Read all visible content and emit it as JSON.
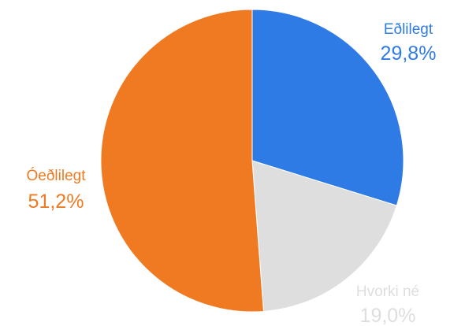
{
  "chart_data": {
    "type": "pie",
    "title": "",
    "slices": [
      {
        "label": "Eðlilegt",
        "value": 29.8,
        "display": "29,8%",
        "color": "#2f7be6"
      },
      {
        "label": "Hvorki né",
        "value": 19.0,
        "display": "19,0%",
        "color": "#dedede"
      },
      {
        "label": "Óeðlilegt",
        "value": 51.2,
        "display": "51,2%",
        "color": "#ef7a22"
      }
    ],
    "start_angle_deg": 0,
    "direction": "clockwise",
    "legend": "none",
    "labels": "outside"
  }
}
